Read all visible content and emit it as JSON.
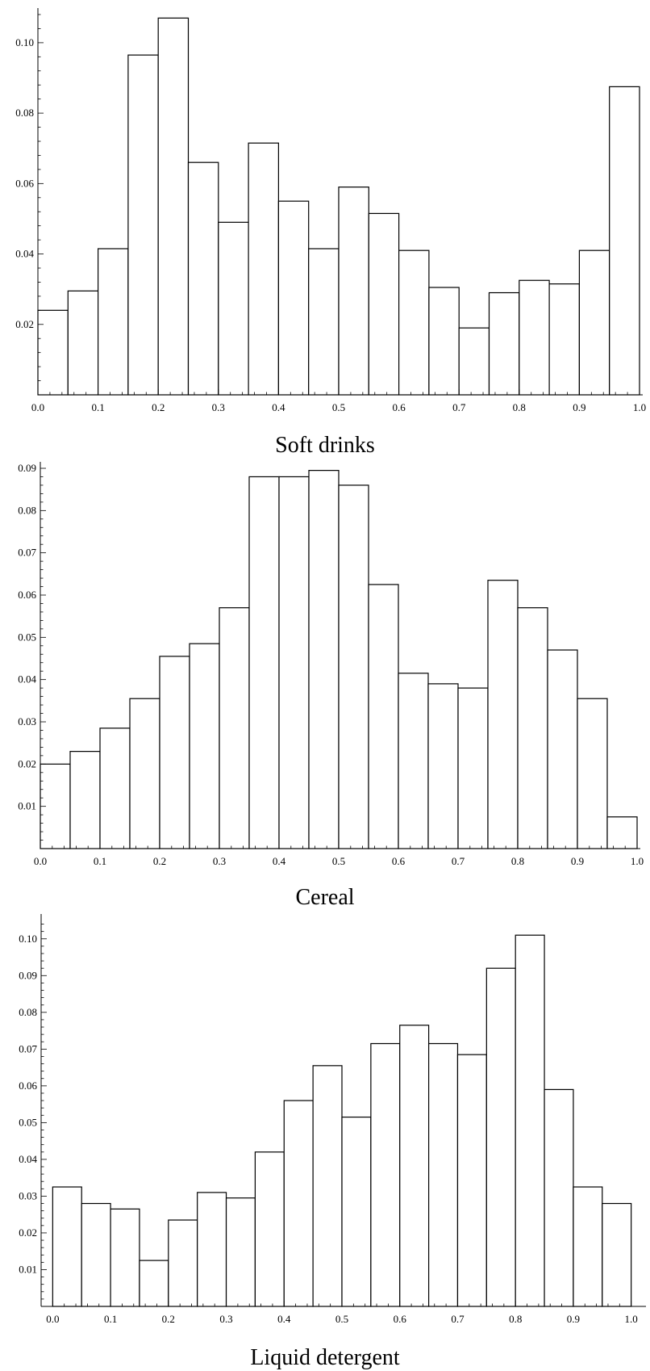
{
  "chart_data": [
    {
      "type": "bar",
      "title": "Soft drinks",
      "xlabel": "",
      "ylabel": "",
      "bin_edges": [
        0.0,
        0.05,
        0.1,
        0.15,
        0.2,
        0.25,
        0.3,
        0.35,
        0.4,
        0.45,
        0.5,
        0.55,
        0.6,
        0.65,
        0.7,
        0.75,
        0.8,
        0.85,
        0.9,
        0.95,
        1.0
      ],
      "values": [
        0.024,
        0.0295,
        0.0415,
        0.0965,
        0.107,
        0.066,
        0.049,
        0.0715,
        0.055,
        0.0415,
        0.059,
        0.0515,
        0.041,
        0.0305,
        0.019,
        0.029,
        0.0325,
        0.0315,
        0.041,
        0.0875
      ],
      "xticks": [
        "0.0",
        "0.1",
        "0.2",
        "0.3",
        "0.4",
        "0.5",
        "0.6",
        "0.7",
        "0.8",
        "0.9",
        "1.0"
      ],
      "yticks": [
        "0.02",
        "0.04",
        "0.06",
        "0.08",
        "0.10"
      ],
      "xlim": [
        0,
        1
      ],
      "ylim": [
        0,
        0.108
      ],
      "grid": false
    },
    {
      "type": "bar",
      "title": "Cereal",
      "xlabel": "",
      "ylabel": "",
      "bin_edges": [
        0.0,
        0.05,
        0.1,
        0.15,
        0.2,
        0.25,
        0.3,
        0.35,
        0.4,
        0.45,
        0.5,
        0.55,
        0.6,
        0.65,
        0.7,
        0.75,
        0.8,
        0.85,
        0.9,
        0.95,
        1.0
      ],
      "values": [
        0.02,
        0.023,
        0.0285,
        0.0355,
        0.0455,
        0.0485,
        0.057,
        0.088,
        0.088,
        0.0895,
        0.086,
        0.0625,
        0.0415,
        0.039,
        0.038,
        0.0635,
        0.057,
        0.047,
        0.0355,
        0.0075
      ],
      "xticks": [
        "0.0",
        "0.1",
        "0.2",
        "0.3",
        "0.4",
        "0.5",
        "0.6",
        "0.7",
        "0.8",
        "0.9",
        "1.0"
      ],
      "yticks": [
        "0.01",
        "0.02",
        "0.03",
        "0.04",
        "0.05",
        "0.06",
        "0.07",
        "0.08",
        "0.09"
      ],
      "xlim": [
        0,
        1
      ],
      "ylim": [
        0,
        0.09
      ],
      "grid": false
    },
    {
      "type": "bar",
      "title": "Liquid detergent",
      "xlabel": "",
      "ylabel": "",
      "bin_edges": [
        0.0,
        0.05,
        0.1,
        0.15,
        0.2,
        0.25,
        0.3,
        0.35,
        0.4,
        0.45,
        0.5,
        0.55,
        0.6,
        0.65,
        0.7,
        0.75,
        0.8,
        0.85,
        0.9,
        0.95,
        1.0
      ],
      "values": [
        0.0325,
        0.028,
        0.0265,
        0.0125,
        0.0235,
        0.031,
        0.0295,
        0.042,
        0.056,
        0.0655,
        0.0515,
        0.0715,
        0.0765,
        0.0715,
        0.0685,
        0.092,
        0.101,
        0.059,
        0.0325,
        0.028
      ],
      "xticks": [
        "0.0",
        "0.1",
        "0.2",
        "0.3",
        "0.4",
        "0.5",
        "0.6",
        "0.7",
        "0.8",
        "0.9",
        "1.0"
      ],
      "yticks": [
        "0.01",
        "0.02",
        "0.03",
        "0.04",
        "0.05",
        "0.06",
        "0.07",
        "0.08",
        "0.09",
        "0.10"
      ],
      "xlim": [
        -0.02,
        1.02
      ],
      "ylim": [
        0,
        0.105
      ],
      "grid": false
    }
  ]
}
